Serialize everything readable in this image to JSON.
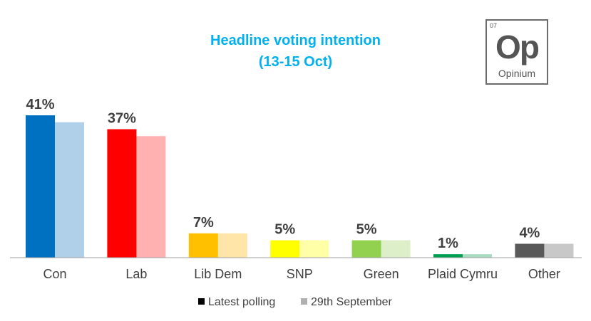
{
  "header": {
    "title": "Headline voting intention",
    "subtitle": "(13-15 Oct)",
    "title_color": "#00b0f0"
  },
  "logo": {
    "number": "07",
    "symbol": "Op",
    "name": "Opinium"
  },
  "chart_data": {
    "type": "bar",
    "categories": [
      "Con",
      "Lab",
      "Lib Dem",
      "SNP",
      "Green",
      "Plaid Cymru",
      "Other"
    ],
    "series": [
      {
        "name": "Latest polling",
        "values": [
          41,
          37,
          7,
          5,
          5,
          1,
          4
        ]
      },
      {
        "name": "29th September",
        "values": [
          39,
          35,
          7,
          5,
          5,
          1,
          4
        ]
      }
    ],
    "data_labels": [
      "41%",
      "37%",
      "7%",
      "5%",
      "5%",
      "1%",
      "4%"
    ],
    "colors_latest": [
      "#0070c0",
      "#ff0000",
      "#ffc000",
      "#ffff00",
      "#92d050",
      "#00a050",
      "#595959"
    ],
    "colors_previous": [
      "#b0d0ea",
      "#ffb0b0",
      "#ffe6a8",
      "#ffffa8",
      "#dcefc8",
      "#a8dcc0",
      "#c8c8c8"
    ],
    "legend_colors": [
      "#000000",
      "#b0b0b0"
    ],
    "ylim": [
      0,
      45
    ],
    "legend_position": "bottom",
    "grid": false
  }
}
